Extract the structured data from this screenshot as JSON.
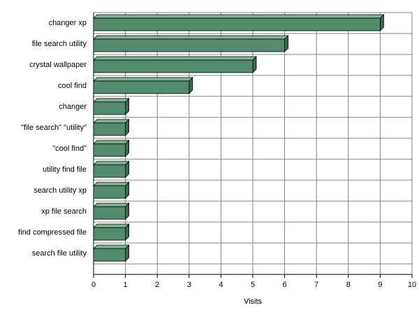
{
  "chart_data": {
    "type": "bar3d_horizontal",
    "categories": [
      "changer xp",
      "file search utility",
      "crystal wallpaper",
      "cool find",
      "changer",
      "\"file search\" \"utility\"",
      "\"cool find\"",
      "utility find file",
      "search utility xp",
      "xp file search",
      "find compressed file",
      "search file utility"
    ],
    "values": [
      9,
      6,
      5,
      3,
      1,
      1,
      1,
      1,
      1,
      1,
      1,
      1
    ],
    "color": "#538c6c",
    "xlabel": "Visits",
    "xlim": [
      0,
      10
    ],
    "xticks": [
      0,
      1,
      2,
      3,
      4,
      5,
      6,
      7,
      8,
      9,
      10
    ],
    "grid": true
  }
}
